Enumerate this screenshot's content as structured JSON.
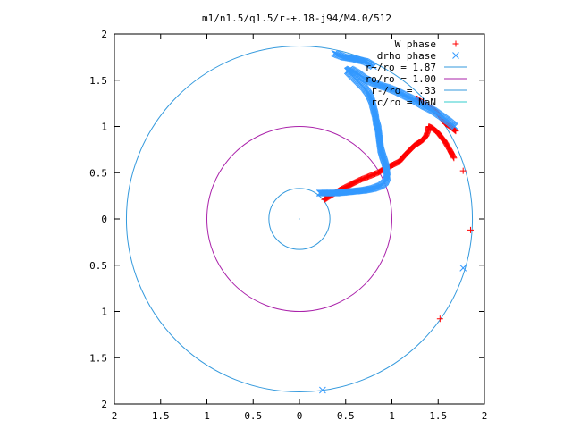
{
  "chart_data": {
    "type": "scatter",
    "title": "m1/n1.5/q1.5/r-+.18-j94/M4.0/512",
    "xlabel": "",
    "ylabel": "",
    "xlim": [
      -2,
      2
    ],
    "ylim": [
      -2,
      2
    ],
    "x_tick_labels": [
      "2",
      "1.5",
      "1",
      "0.5",
      "0",
      "0.5",
      "1",
      "1.5",
      "2"
    ],
    "y_tick_labels": [
      "2",
      "1.5",
      "1",
      "0.5",
      "0",
      "0.5",
      "1",
      "1.5",
      "2"
    ],
    "grid": false,
    "legend_position": "top-right",
    "series": [
      {
        "name": "W phase",
        "marker": "+",
        "color": "#ff0000",
        "points": [
          [
            0.27,
            0.21
          ],
          [
            0.35,
            0.26
          ],
          [
            0.45,
            0.32
          ],
          [
            0.55,
            0.37
          ],
          [
            0.65,
            0.42
          ],
          [
            0.75,
            0.46
          ],
          [
            0.85,
            0.5
          ],
          [
            0.93,
            0.55
          ],
          [
            1.0,
            0.58
          ],
          [
            1.08,
            0.62
          ],
          [
            1.15,
            0.7
          ],
          [
            1.2,
            0.75
          ],
          [
            1.25,
            0.8
          ],
          [
            1.3,
            0.83
          ],
          [
            1.34,
            0.86
          ],
          [
            1.37,
            0.9
          ],
          [
            1.39,
            0.95
          ],
          [
            1.4,
            1.0
          ],
          [
            1.44,
            0.98
          ],
          [
            1.49,
            0.94
          ],
          [
            1.53,
            0.89
          ],
          [
            1.57,
            0.84
          ],
          [
            1.6,
            0.79
          ],
          [
            1.63,
            0.74
          ],
          [
            1.65,
            0.7
          ],
          [
            1.67,
            0.66
          ],
          [
            1.27,
            1.3
          ],
          [
            1.33,
            1.26
          ],
          [
            1.37,
            1.23
          ],
          [
            1.45,
            1.18
          ],
          [
            1.5,
            1.14
          ],
          [
            1.53,
            1.1
          ],
          [
            1.58,
            1.03
          ],
          [
            1.63,
            1.0
          ],
          [
            1.69,
            0.95
          ],
          [
            1.77,
            0.52
          ],
          [
            1.85,
            -0.12
          ],
          [
            1.52,
            -1.08
          ]
        ]
      },
      {
        "name": "drho phase",
        "marker": "x",
        "color": "#3399ff",
        "points": [
          [
            0.22,
            0.28
          ],
          [
            0.3,
            0.28
          ],
          [
            0.4,
            0.28
          ],
          [
            0.5,
            0.29
          ],
          [
            0.6,
            0.3
          ],
          [
            0.7,
            0.31
          ],
          [
            0.8,
            0.33
          ],
          [
            0.88,
            0.36
          ],
          [
            0.93,
            0.4
          ],
          [
            0.95,
            0.45
          ],
          [
            0.94,
            0.55
          ],
          [
            0.92,
            0.62
          ],
          [
            0.9,
            0.68
          ],
          [
            0.88,
            0.75
          ],
          [
            0.87,
            0.82
          ],
          [
            0.86,
            0.9
          ],
          [
            0.85,
            0.98
          ],
          [
            0.83,
            1.05
          ],
          [
            0.82,
            1.12
          ],
          [
            0.8,
            1.2
          ],
          [
            0.78,
            1.28
          ],
          [
            0.75,
            1.35
          ],
          [
            0.7,
            1.42
          ],
          [
            0.62,
            1.5
          ],
          [
            0.57,
            1.55
          ],
          [
            0.52,
            1.6
          ],
          [
            0.55,
            1.62
          ],
          [
            0.62,
            1.58
          ],
          [
            0.7,
            1.52
          ],
          [
            0.78,
            1.48
          ],
          [
            0.85,
            1.45
          ],
          [
            0.95,
            1.42
          ],
          [
            1.05,
            1.38
          ],
          [
            1.15,
            1.33
          ],
          [
            1.25,
            1.28
          ],
          [
            1.35,
            1.22
          ],
          [
            1.45,
            1.17
          ],
          [
            1.55,
            1.1
          ],
          [
            1.62,
            1.05
          ],
          [
            1.68,
            1.0
          ],
          [
            0.38,
            1.79
          ],
          [
            0.48,
            1.75
          ],
          [
            0.6,
            1.73
          ],
          [
            0.72,
            1.7
          ],
          [
            0.8,
            1.65
          ],
          [
            1.77,
            -0.53
          ],
          [
            0.25,
            -1.85
          ]
        ]
      }
    ],
    "reference_circles": [
      {
        "name": "r+/ro = 1.87",
        "radius": 1.87,
        "color": "#3399dd"
      },
      {
        "name": "ro/ro = 1.00",
        "radius": 1.0,
        "color": "#aa22aa"
      },
      {
        "name": "r-/ro = .33",
        "radius": 0.33,
        "color": "#3399dd"
      },
      {
        "name": "rc/ro = NaN",
        "radius": null,
        "color": "#33cccc"
      }
    ]
  }
}
